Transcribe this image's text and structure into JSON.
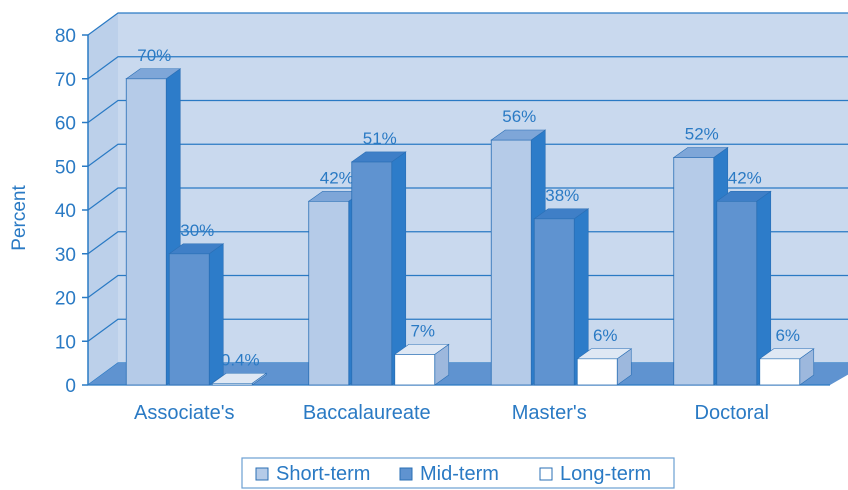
{
  "chart_data": {
    "type": "bar",
    "categories": [
      "Associate's",
      "Baccalaureate",
      "Master's",
      "Doctoral"
    ],
    "series": [
      {
        "name": "Short-term",
        "values": [
          70,
          42,
          56,
          52
        ],
        "labels": [
          "70%",
          "42%",
          "56%",
          "52%"
        ]
      },
      {
        "name": "Mid-term",
        "values": [
          30,
          51,
          38,
          42
        ],
        "labels": [
          "30%",
          "51%",
          "38%",
          "42%"
        ]
      },
      {
        "name": "Long-term",
        "values": [
          0.4,
          7,
          6,
          6
        ],
        "labels": [
          "0.4%",
          "7%",
          "6%",
          "6%"
        ]
      }
    ],
    "ylabel": "Percent",
    "ylim": [
      0,
      80
    ],
    "yticks": [
      "0",
      "10",
      "20",
      "30",
      "40",
      "50",
      "60",
      "70",
      "80"
    ],
    "grid": true,
    "legend_position": "bottom",
    "style": "3d",
    "colors": {
      "text": "#2a7ac4",
      "wall": "#c9d9ee",
      "floor": "#5f93d0",
      "grid": "#2a7ac4",
      "series": [
        "#b5cbe8",
        "#5f93d0",
        "#ffffff"
      ],
      "series_side": [
        "#2d7cc9",
        "#2d7cc9",
        "#9db8dd"
      ],
      "series_top": [
        "#7ea6d8",
        "#3f7fc7",
        "#dfe8f4"
      ]
    }
  }
}
